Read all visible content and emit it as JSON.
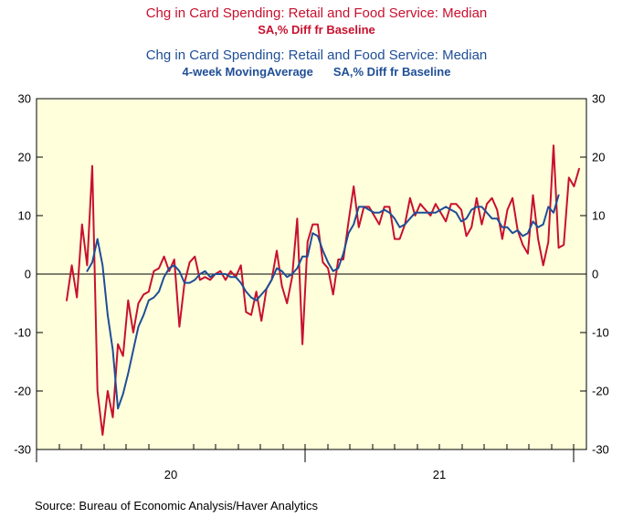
{
  "titles": {
    "series1_title": "Chg in Card Spending: Retail and Food Service: Median",
    "series1_sub": "SA,% Diff fr Baseline",
    "series2_title": "Chg in Card Spending: Retail and Food Service: Median",
    "series2_sub_a": "4-week MovingAverage",
    "series2_sub_b": "SA,% Diff fr Baseline"
  },
  "source": "Source:  Bureau of Economic Analysis/Haver Analytics",
  "colors": {
    "red": "#c8102e",
    "blue": "#1f4e96",
    "plot_bg": "#ffffdc"
  },
  "chart_data": {
    "type": "line",
    "title": "",
    "xlabel": "",
    "ylabel": "",
    "ylim": [
      -30,
      30
    ],
    "yticks": [
      30,
      20,
      10,
      0,
      -10,
      -20,
      -30
    ],
    "yticks_right": [
      30,
      20,
      10,
      0,
      -10,
      -20,
      -30
    ],
    "x_labels": [
      "20",
      "21"
    ],
    "grid": false,
    "background": "light-yellow",
    "series": [
      {
        "name": "Chg in Card Spending: Retail and Food Service: Median SA,% Diff fr Baseline",
        "color": "#c8102e",
        "values": [
          -4.5,
          1.5,
          -4,
          8.5,
          1.5,
          18.5,
          -20,
          -27.5,
          -20,
          -24.5,
          -12,
          -14,
          -4.5,
          -10,
          -5,
          -3.5,
          -3,
          0.5,
          1,
          3,
          0.5,
          2.5,
          -9,
          -1.5,
          2,
          3,
          -1,
          -0.5,
          -1,
          0,
          0.5,
          -1,
          0.5,
          -0.5,
          1.5,
          -6.5,
          -7,
          -3,
          -8,
          -2.5,
          -1,
          4,
          -2,
          -5,
          -0.5,
          9.5,
          -12,
          5.5,
          8.5,
          8.5,
          2,
          1,
          -3.5,
          2.5,
          2.5,
          9,
          15,
          8,
          11.5,
          11.5,
          10,
          8.5,
          11.5,
          11.5,
          6,
          6,
          8.5,
          13,
          10,
          12,
          11,
          10,
          12,
          10.5,
          9,
          12,
          12,
          11,
          6.5,
          8,
          13,
          8.5,
          12,
          13,
          11,
          6,
          11,
          13,
          7.5,
          5,
          3.5,
          13.5,
          6,
          1.5,
          5.5,
          22,
          4.5,
          5,
          16.5,
          15,
          18
        ]
      },
      {
        "name": "Chg in Card Spending: Retail and Food Service: Median 4-week MovingAverage SA,% Diff fr Baseline",
        "color": "#1f4e96",
        "start_index": 4,
        "values": [
          0.5,
          2,
          6,
          1.5,
          -7,
          -13,
          -23,
          -20.5,
          -17,
          -13,
          -9,
          -7,
          -4.5,
          -4,
          -3,
          -0.5,
          1,
          1.5,
          0.5,
          -1.5,
          -1.5,
          -1,
          0,
          0.5,
          -0.5,
          0,
          0,
          0,
          -0.5,
          -0.5,
          -1.5,
          -3,
          -4,
          -4.5,
          -3.5,
          -2.5,
          -1,
          1,
          0.5,
          -0.5,
          0,
          1,
          3,
          3,
          7,
          6.5,
          4,
          2,
          0.5,
          1,
          3.5,
          7,
          8.5,
          11.5,
          11.5,
          11,
          10.5,
          10.5,
          11,
          10.5,
          9.5,
          8,
          8.5,
          9.5,
          10.5,
          10.5,
          10.5,
          10.5,
          10.5,
          11,
          11.5,
          11,
          10.5,
          9,
          9.5,
          11,
          11.5,
          11.5,
          10.5,
          9.5,
          9.5,
          8,
          8,
          7,
          7.5,
          6.5,
          7,
          9,
          8,
          8.5,
          11.5,
          10.5,
          13.5
        ]
      }
    ]
  }
}
